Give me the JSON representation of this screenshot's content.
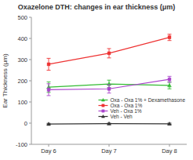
{
  "chart_data": {
    "type": "line",
    "title": "Oxazelone DTH: changes in ear thickness (μm)",
    "y_label": "Ear Thickness (μm)",
    "categories": [
      "Day 6",
      "Day 7",
      "Day 8"
    ],
    "series": [
      {
        "name": "Oxa - Oxa 1% + Dexamethasone",
        "color": "#33bb33",
        "marker": "triangle",
        "values": [
          170,
          185,
          178
        ],
        "yerr": [
          25,
          18,
          16
        ]
      },
      {
        "name": "Oxa - Oxa 1%",
        "color": "#ee3333",
        "marker": "square",
        "values": [
          278,
          330,
          405
        ],
        "yerr": [
          28,
          22,
          15
        ]
      },
      {
        "name": "Veh - Oxa 1%",
        "color": "#aa44cc",
        "marker": "square",
        "values": [
          158,
          162,
          207
        ],
        "yerr": [
          28,
          20,
          14
        ]
      },
      {
        "name": "Veh - Veh",
        "color": "#333333",
        "marker": "triangle",
        "values": [
          -4,
          -2,
          -3
        ],
        "yerr": [
          3,
          2,
          3
        ]
      }
    ],
    "ylim": [
      -100,
      500
    ],
    "yticks": [
      -100,
      0,
      100,
      200,
      300,
      400,
      500
    ],
    "grid": false,
    "legend": "lower right"
  }
}
